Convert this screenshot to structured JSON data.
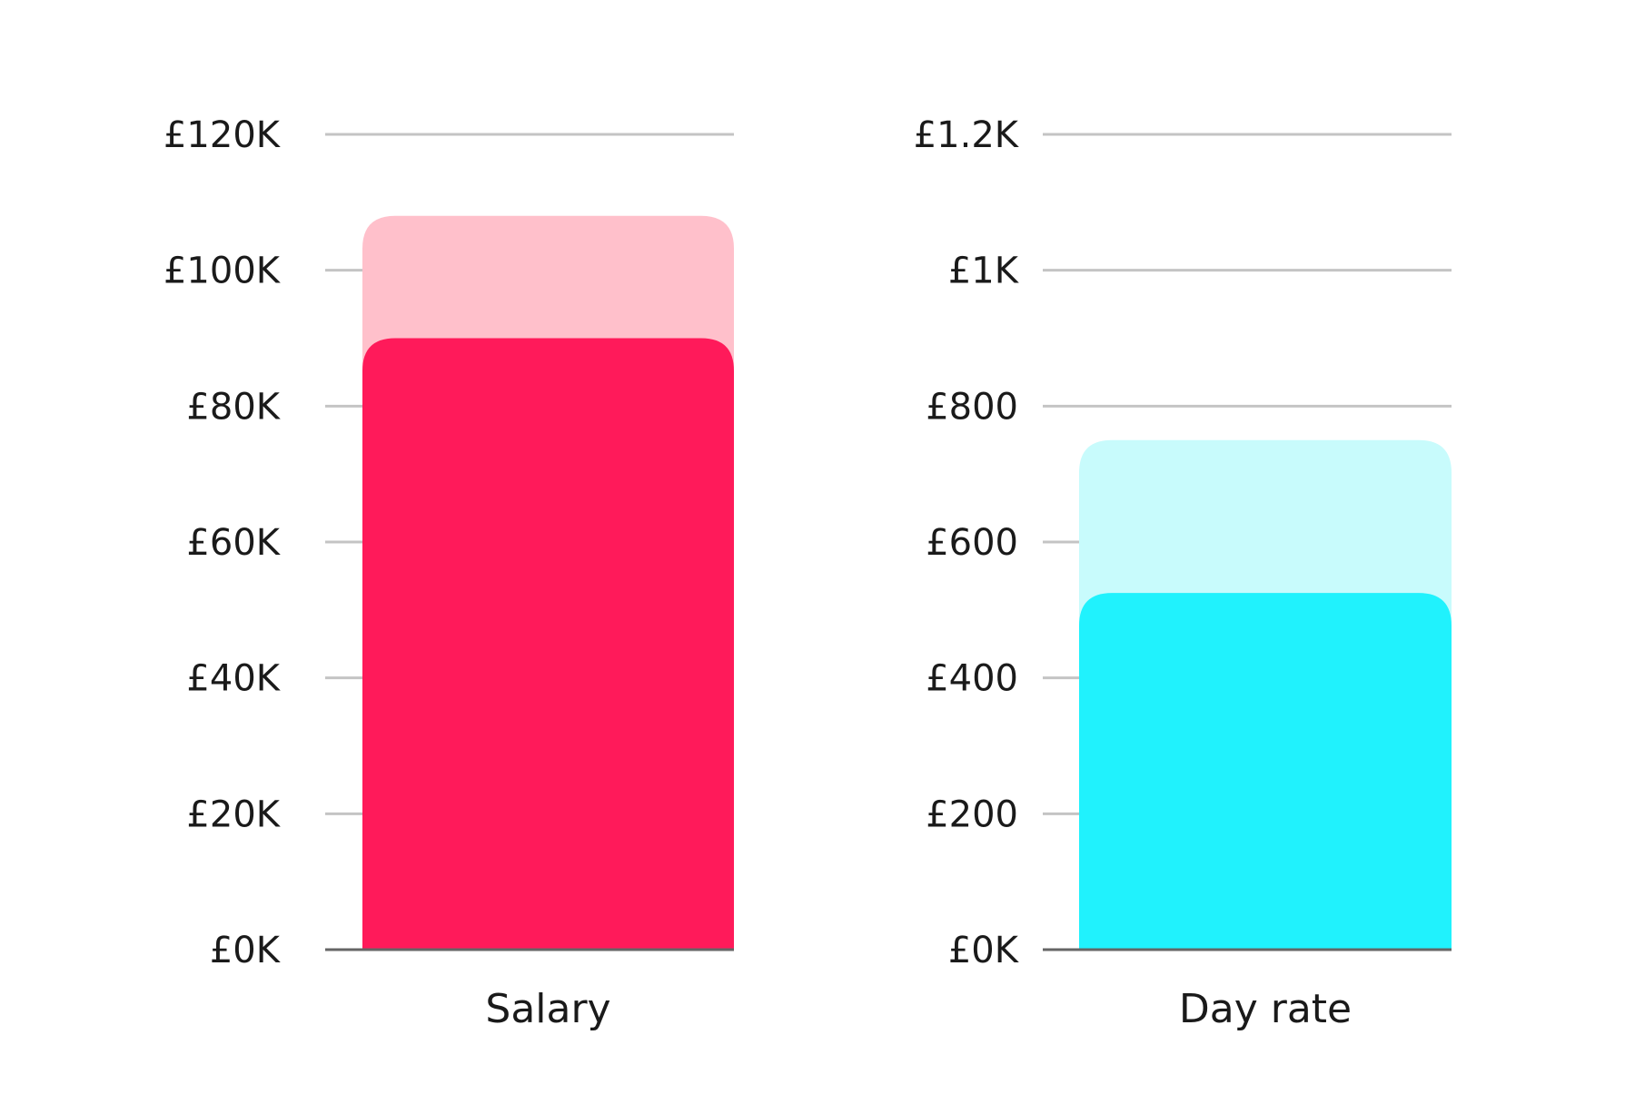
{
  "chart_data": [
    {
      "type": "bar",
      "categories": [
        "Salary"
      ],
      "series": [
        {
          "values": [
            108000
          ],
          "color": "#ffc0cb"
        },
        {
          "values": [
            90000
          ],
          "color": "#ff1a5a"
        }
      ],
      "ylim": [
        0,
        120000
      ],
      "yticks": [
        0,
        20000,
        40000,
        60000,
        80000,
        100000,
        120000
      ],
      "ytick_labels": [
        "£0K",
        "£20K",
        "£40K",
        "£60K",
        "£80K",
        "£100K",
        "£120K"
      ],
      "xlabel": "Salary",
      "grid": true
    },
    {
      "type": "bar",
      "categories": [
        "Day rate"
      ],
      "series": [
        {
          "values": [
            750
          ],
          "color": "#c8fbfc"
        },
        {
          "values": [
            525
          ],
          "color": "#20f2fd"
        }
      ],
      "ylim": [
        0,
        1200
      ],
      "yticks": [
        0,
        200,
        400,
        600,
        800,
        1000,
        1200
      ],
      "ytick_labels": [
        "£0K",
        "£200",
        "£400",
        "£600",
        "£800",
        "£1K",
        "£1.2K"
      ],
      "xlabel": "Day rate",
      "grid": true
    }
  ]
}
